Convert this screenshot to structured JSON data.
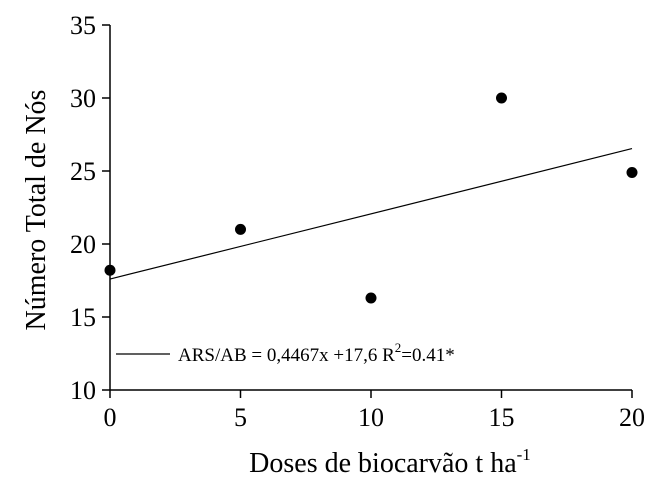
{
  "chart_data": {
    "type": "scatter",
    "xlabel": "Doses de biocarvão t ha",
    "xlabel_sup": "-1",
    "ylabel": "Número Total de Nós",
    "xlim": [
      0,
      20
    ],
    "ylim": [
      10,
      35
    ],
    "xticks": [
      0,
      5,
      10,
      15,
      20
    ],
    "yticks": [
      10,
      15,
      20,
      25,
      30,
      35
    ],
    "grid": false,
    "series": [
      {
        "points": [
          {
            "x": 0,
            "y": 18.2
          },
          {
            "x": 5,
            "y": 21.0
          },
          {
            "x": 10,
            "y": 16.3
          },
          {
            "x": 15,
            "y": 30.0
          },
          {
            "x": 20,
            "y": 24.9
          }
        ]
      }
    ],
    "trendline": {
      "slope": 0.4467,
      "intercept": 17.6,
      "x_range": [
        0,
        20
      ]
    },
    "legend": {
      "placement": "bottom-left",
      "label_main": "ARS/AB = 0,4467x +17,6 R",
      "label_sup": "2",
      "label_tail": "=0.41*"
    }
  }
}
